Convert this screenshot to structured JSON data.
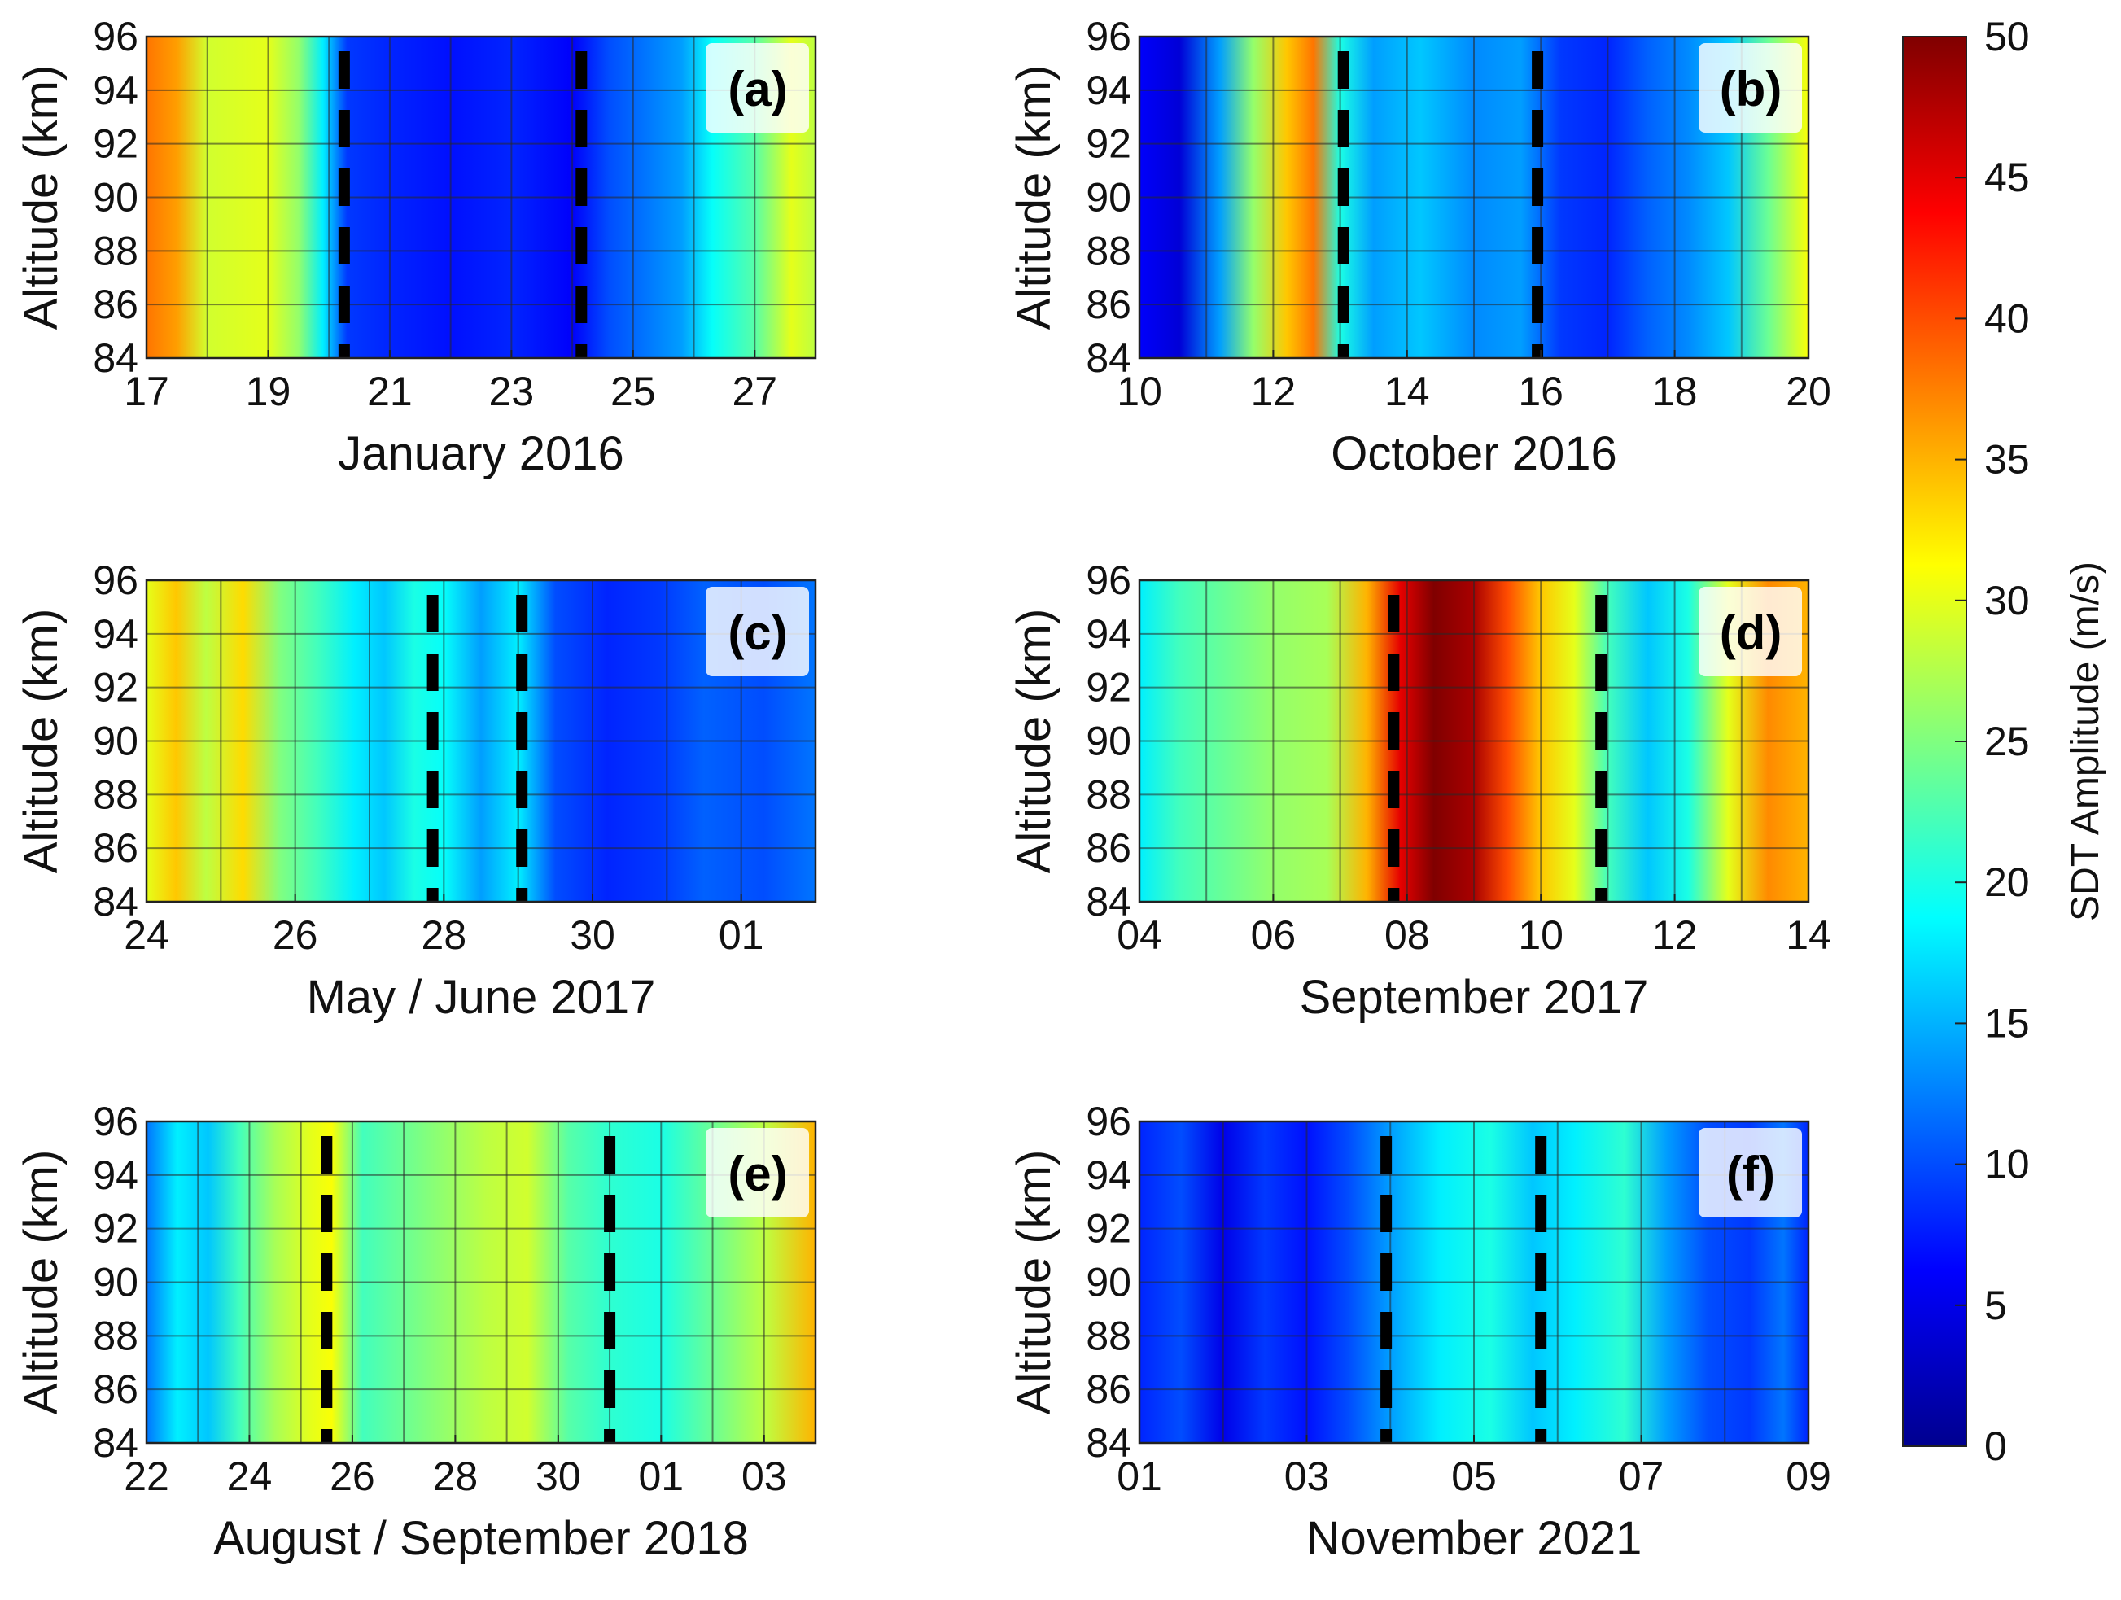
{
  "chart_data": {
    "type": "heatmap",
    "colorbar": {
      "label": "SDT Amplitude (m/s)",
      "range": [
        0,
        50
      ],
      "ticks": [
        "0",
        "5",
        "10",
        "15",
        "20",
        "25",
        "30",
        "35",
        "40",
        "45",
        "50"
      ],
      "colormap": "jet"
    },
    "ylabel": "Altitude (km)",
    "y_ticks": [
      "84",
      "86",
      "88",
      "90",
      "92",
      "94",
      "96"
    ],
    "ylim": [
      84,
      96
    ],
    "panels": [
      {
        "label": "(a)",
        "xlabel": "January 2016",
        "x_ticks": [
          "17",
          "19",
          "21",
          "23",
          "25",
          "27"
        ],
        "xlim": [
          17,
          28
        ],
        "dashed_lines": [
          20.25,
          24.15
        ],
        "amplitude_profile": [
          {
            "x": 17.0,
            "v": 38
          },
          {
            "x": 17.5,
            "v": 36
          },
          {
            "x": 18.0,
            "v": 29
          },
          {
            "x": 19.0,
            "v": 30
          },
          {
            "x": 19.5,
            "v": 26
          },
          {
            "x": 19.9,
            "v": 18
          },
          {
            "x": 20.3,
            "v": 9
          },
          {
            "x": 21.0,
            "v": 8
          },
          {
            "x": 22.0,
            "v": 7
          },
          {
            "x": 23.0,
            "v": 8
          },
          {
            "x": 24.0,
            "v": 6
          },
          {
            "x": 24.6,
            "v": 10
          },
          {
            "x": 25.2,
            "v": 12
          },
          {
            "x": 25.8,
            "v": 14
          },
          {
            "x": 26.3,
            "v": 19
          },
          {
            "x": 27.0,
            "v": 23
          },
          {
            "x": 27.6,
            "v": 30
          },
          {
            "x": 28.0,
            "v": 28
          }
        ]
      },
      {
        "label": "(b)",
        "xlabel": "October 2016",
        "x_ticks": [
          "10",
          "12",
          "14",
          "16",
          "18",
          "20"
        ],
        "xlim": [
          10,
          20
        ],
        "dashed_lines": [
          13.05,
          15.95
        ],
        "amplitude_profile": [
          {
            "x": 10.0,
            "v": 6
          },
          {
            "x": 10.6,
            "v": 4
          },
          {
            "x": 11.2,
            "v": 14
          },
          {
            "x": 11.7,
            "v": 26
          },
          {
            "x": 12.2,
            "v": 34
          },
          {
            "x": 12.6,
            "v": 38
          },
          {
            "x": 13.0,
            "v": 20
          },
          {
            "x": 13.5,
            "v": 14
          },
          {
            "x": 14.2,
            "v": 16
          },
          {
            "x": 15.0,
            "v": 13
          },
          {
            "x": 15.7,
            "v": 14
          },
          {
            "x": 16.3,
            "v": 9
          },
          {
            "x": 17.0,
            "v": 8
          },
          {
            "x": 17.6,
            "v": 11
          },
          {
            "x": 18.2,
            "v": 13
          },
          {
            "x": 18.8,
            "v": 16
          },
          {
            "x": 19.4,
            "v": 24
          },
          {
            "x": 20.0,
            "v": 31
          }
        ]
      },
      {
        "label": "(c)",
        "xlabel": "May / June 2017",
        "x_ticks": [
          "24",
          "26",
          "28",
          "30",
          "01"
        ],
        "xlim": [
          24,
          33
        ],
        "dashed_lines": [
          27.85,
          29.05
        ],
        "amplitude_profile": [
          {
            "x": 24.0,
            "v": 30
          },
          {
            "x": 24.4,
            "v": 34
          },
          {
            "x": 24.8,
            "v": 28
          },
          {
            "x": 25.3,
            "v": 33
          },
          {
            "x": 25.8,
            "v": 25
          },
          {
            "x": 26.3,
            "v": 22
          },
          {
            "x": 26.8,
            "v": 18
          },
          {
            "x": 27.2,
            "v": 16
          },
          {
            "x": 27.6,
            "v": 20
          },
          {
            "x": 28.0,
            "v": 19
          },
          {
            "x": 28.5,
            "v": 14
          },
          {
            "x": 29.0,
            "v": 18
          },
          {
            "x": 29.5,
            "v": 10
          },
          {
            "x": 30.2,
            "v": 8
          },
          {
            "x": 30.9,
            "v": 9
          },
          {
            "x": 31.5,
            "v": 11
          },
          {
            "x": 32.3,
            "v": 10
          },
          {
            "x": 33.0,
            "v": 12
          }
        ]
      },
      {
        "label": "(d)",
        "xlabel": "September 2017",
        "x_ticks": [
          "04",
          "06",
          "08",
          "10",
          "12",
          "14"
        ],
        "xlim": [
          4,
          14
        ],
        "dashed_lines": [
          7.8,
          10.9
        ],
        "amplitude_profile": [
          {
            "x": 4.0,
            "v": 18
          },
          {
            "x": 4.6,
            "v": 22
          },
          {
            "x": 5.3,
            "v": 24
          },
          {
            "x": 6.0,
            "v": 26
          },
          {
            "x": 6.8,
            "v": 27
          },
          {
            "x": 7.4,
            "v": 35
          },
          {
            "x": 7.9,
            "v": 45
          },
          {
            "x": 8.4,
            "v": 50
          },
          {
            "x": 9.0,
            "v": 48
          },
          {
            "x": 9.5,
            "v": 40
          },
          {
            "x": 10.0,
            "v": 34
          },
          {
            "x": 10.5,
            "v": 30
          },
          {
            "x": 11.0,
            "v": 22
          },
          {
            "x": 11.6,
            "v": 16
          },
          {
            "x": 12.2,
            "v": 20
          },
          {
            "x": 12.8,
            "v": 30
          },
          {
            "x": 13.4,
            "v": 37
          },
          {
            "x": 14.0,
            "v": 35
          }
        ]
      },
      {
        "label": "(e)",
        "xlabel": "August / September 2018",
        "x_ticks": [
          "22",
          "24",
          "26",
          "28",
          "30",
          "01",
          "03"
        ],
        "xlim": [
          22,
          35
        ],
        "dashed_lines": [
          25.5,
          31.0
        ],
        "amplitude_profile": [
          {
            "x": 22.0,
            "v": 12
          },
          {
            "x": 22.6,
            "v": 18
          },
          {
            "x": 23.2,
            "v": 16
          },
          {
            "x": 23.8,
            "v": 22
          },
          {
            "x": 24.5,
            "v": 27
          },
          {
            "x": 25.2,
            "v": 30
          },
          {
            "x": 25.6,
            "v": 31
          },
          {
            "x": 26.2,
            "v": 22
          },
          {
            "x": 27.0,
            "v": 24
          },
          {
            "x": 27.8,
            "v": 26
          },
          {
            "x": 28.6,
            "v": 28
          },
          {
            "x": 29.4,
            "v": 29
          },
          {
            "x": 30.2,
            "v": 23
          },
          {
            "x": 31.0,
            "v": 21
          },
          {
            "x": 32.0,
            "v": 20
          },
          {
            "x": 33.0,
            "v": 24
          },
          {
            "x": 34.0,
            "v": 28
          },
          {
            "x": 35.0,
            "v": 35
          }
        ]
      },
      {
        "label": "(f)",
        "xlabel": "November 2021",
        "x_ticks": [
          "01",
          "03",
          "05",
          "07",
          "09"
        ],
        "xlim": [
          1,
          9
        ],
        "dashed_lines": [
          3.95,
          5.8
        ],
        "amplitude_profile": [
          {
            "x": 1.0,
            "v": 8
          },
          {
            "x": 1.5,
            "v": 10
          },
          {
            "x": 2.0,
            "v": 5
          },
          {
            "x": 2.5,
            "v": 9
          },
          {
            "x": 3.0,
            "v": 7
          },
          {
            "x": 3.5,
            "v": 10
          },
          {
            "x": 4.0,
            "v": 14
          },
          {
            "x": 4.6,
            "v": 18
          },
          {
            "x": 5.2,
            "v": 20
          },
          {
            "x": 5.7,
            "v": 16
          },
          {
            "x": 6.2,
            "v": 18
          },
          {
            "x": 6.8,
            "v": 21
          },
          {
            "x": 7.3,
            "v": 14
          },
          {
            "x": 7.8,
            "v": 10
          },
          {
            "x": 8.3,
            "v": 9
          },
          {
            "x": 8.7,
            "v": 12
          },
          {
            "x": 9.0,
            "v": 8
          }
        ]
      }
    ]
  }
}
